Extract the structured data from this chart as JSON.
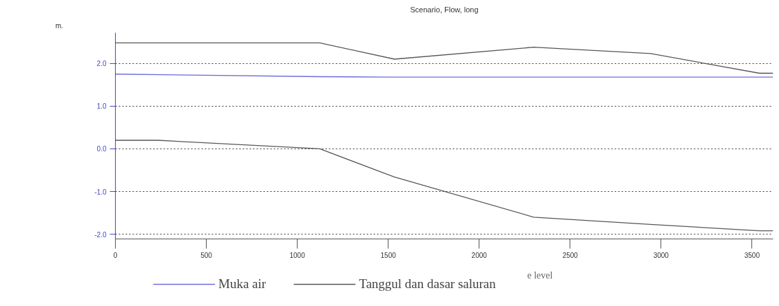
{
  "chart_data": {
    "type": "line",
    "title": "Scenario, Flow, long",
    "ylabel": "m.",
    "xlim": [
      0,
      3616
    ],
    "ylim": [
      -2.11,
      2.72
    ],
    "xticks": [
      0,
      500,
      1000,
      1500,
      2000,
      2500,
      3000,
      3500
    ],
    "yticks": [
      {
        "value": -2,
        "label": "-2.0"
      },
      {
        "value": -1,
        "label": "-1.0"
      },
      {
        "value": 0,
        "label": "0.0"
      },
      {
        "value": 1,
        "label": "1.0"
      },
      {
        "value": 2,
        "label": "2.0"
      }
    ],
    "grid": "y",
    "legend": "bottom left",
    "line_style": "solid",
    "marker": "none",
    "annotations": [
      "e level"
    ],
    "series": [
      {
        "name": "Muka air",
        "color": "#6b6bdb",
        "x": [
          0,
          1124,
          1500,
          3616
        ],
        "values": [
          1.75,
          1.69,
          1.68,
          1.68
        ]
      },
      {
        "name": "Tanggul dan dasar saluran",
        "color": "#555555",
        "x": [
          0,
          1124,
          1534,
          2300,
          2943,
          3541,
          3616
        ],
        "values": [
          2.48,
          2.48,
          2.1,
          2.38,
          2.23,
          1.77,
          1.77
        ]
      },
      {
        "color": "#555555",
        "x": [
          0,
          231,
          1124,
          1534,
          2300,
          2943,
          3541,
          3616
        ],
        "values": [
          0.2,
          0.2,
          0.0,
          -0.66,
          -1.6,
          -1.77,
          -1.92,
          -1.92
        ]
      }
    ]
  }
}
